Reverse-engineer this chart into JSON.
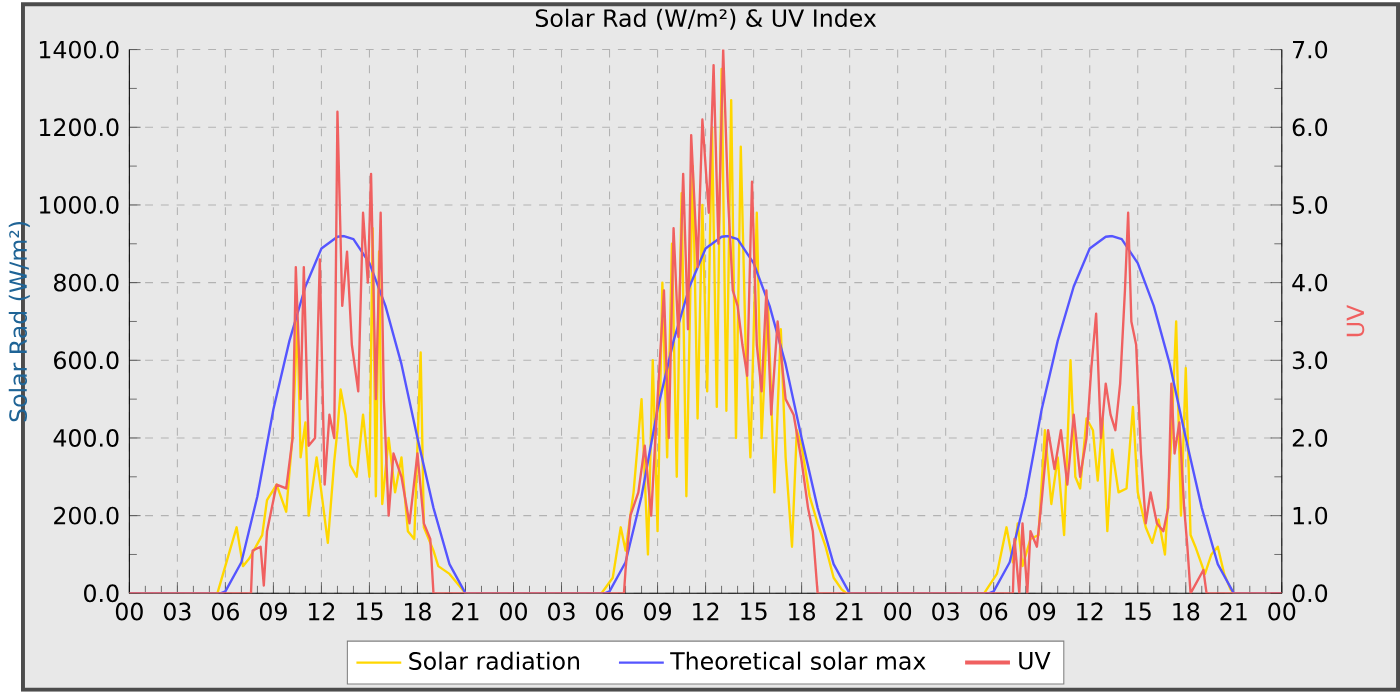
{
  "chart_data": {
    "type": "line",
    "title": "Solar Rad (W/m²) &  UV Index",
    "ylabel": "Solar Rad (W/m²)",
    "y2label": "UV",
    "xlim": [
      0,
      72
    ],
    "xticks": [
      {
        "value": 0,
        "label": "00"
      },
      {
        "value": 3,
        "label": "03"
      },
      {
        "value": 6,
        "label": "06"
      },
      {
        "value": 9,
        "label": "09"
      },
      {
        "value": 12,
        "label": "12"
      },
      {
        "value": 15,
        "label": "15"
      },
      {
        "value": 18,
        "label": "18"
      },
      {
        "value": 21,
        "label": "21"
      },
      {
        "value": 24,
        "label": "00"
      },
      {
        "value": 27,
        "label": "03"
      },
      {
        "value": 30,
        "label": "06"
      },
      {
        "value": 33,
        "label": "09"
      },
      {
        "value": 36,
        "label": "12"
      },
      {
        "value": 39,
        "label": "15"
      },
      {
        "value": 42,
        "label": "18"
      },
      {
        "value": 45,
        "label": "21"
      },
      {
        "value": 48,
        "label": "00"
      },
      {
        "value": 51,
        "label": "03"
      },
      {
        "value": 54,
        "label": "06"
      },
      {
        "value": 57,
        "label": "09"
      },
      {
        "value": 60,
        "label": "12"
      },
      {
        "value": 63,
        "label": "15"
      },
      {
        "value": 66,
        "label": "18"
      },
      {
        "value": 69,
        "label": "21"
      },
      {
        "value": 72,
        "label": "00"
      }
    ],
    "ylim": [
      0,
      1400
    ],
    "yticks": [
      {
        "value": 0,
        "label": "0.0"
      },
      {
        "value": 200,
        "label": "200.0"
      },
      {
        "value": 400,
        "label": "400.0"
      },
      {
        "value": 600,
        "label": "600.0"
      },
      {
        "value": 800,
        "label": "800.0"
      },
      {
        "value": 1000,
        "label": "1000.0"
      },
      {
        "value": 1200,
        "label": "1200.0"
      },
      {
        "value": 1400,
        "label": "1400.0"
      }
    ],
    "y2lim": [
      0,
      7
    ],
    "y2ticks": [
      {
        "value": 0,
        "label": "0.0"
      },
      {
        "value": 1,
        "label": "1.0"
      },
      {
        "value": 2,
        "label": "2.0"
      },
      {
        "value": 3,
        "label": "3.0"
      },
      {
        "value": 4,
        "label": "4.0"
      },
      {
        "value": 5,
        "label": "5.0"
      },
      {
        "value": 6,
        "label": "6.0"
      },
      {
        "value": 7,
        "label": "7.0"
      }
    ],
    "grid": true,
    "legend": "bottom",
    "series": [
      {
        "name": "Solar radiation",
        "color": "#ffd700",
        "x": [
          0,
          5.5,
          6.7,
          7.1,
          7.5,
          8.3,
          8.6,
          9.2,
          9.8,
          10.2,
          10.5,
          10.7,
          11,
          11.2,
          11.7,
          12,
          12.4,
          12.8,
          13,
          13.2,
          13.5,
          13.8,
          14.2,
          14.6,
          15,
          15.2,
          15.4,
          15.6,
          15.8,
          16.2,
          16.6,
          17,
          17.4,
          17.8,
          18.2,
          18.4,
          19,
          19.3,
          20,
          20.6,
          21,
          29.5,
          30.2,
          30.7,
          31,
          31.5,
          32,
          32.4,
          32.7,
          33,
          33.3,
          33.6,
          33.9,
          34.2,
          34.5,
          34.8,
          35.2,
          35.5,
          35.8,
          36.1,
          36.4,
          36.7,
          37,
          37.3,
          37.6,
          37.9,
          38.2,
          38.5,
          38.8,
          39.2,
          39.5,
          39.9,
          40.3,
          40.7,
          41,
          41.4,
          41.7,
          42,
          42.5,
          43,
          43.5,
          44,
          44.5,
          44.8,
          53.4,
          54.2,
          54.8,
          55.2,
          55.5,
          55.8,
          56.3,
          56.8,
          57.2,
          57.6,
          58,
          58.4,
          58.8,
          59.1,
          59.4,
          59.8,
          60.2,
          60.5,
          60.8,
          61.1,
          61.4,
          61.8,
          62.3,
          62.7,
          63,
          63.5,
          63.9,
          64.3,
          64.7,
          65.1,
          65.4,
          65.7,
          66,
          66.3,
          66.6,
          67.2,
          67.6,
          68,
          68.4,
          68.8,
          69,
          72
        ],
        "values": [
          0,
          0,
          170,
          70,
          90,
          150,
          240,
          280,
          210,
          410,
          700,
          350,
          440,
          200,
          350,
          260,
          130,
          340,
          420,
          525,
          460,
          330,
          300,
          460,
          300,
          940,
          250,
          880,
          230,
          400,
          260,
          350,
          160,
          140,
          620,
          170,
          110,
          70,
          50,
          20,
          0,
          0,
          40,
          170,
          110,
          260,
          500,
          100,
          600,
          160,
          800,
          350,
          900,
          300,
          1030,
          250,
          1100,
          450,
          1000,
          520,
          1200,
          480,
          1350,
          470,
          1270,
          400,
          1150,
          640,
          350,
          980,
          400,
          750,
          260,
          680,
          350,
          120,
          420,
          380,
          250,
          180,
          120,
          40,
          10,
          0,
          0,
          50,
          170,
          80,
          180,
          70,
          140,
          150,
          420,
          230,
          350,
          150,
          600,
          300,
          270,
          450,
          420,
          290,
          450,
          160,
          370,
          260,
          270,
          480,
          260,
          170,
          130,
          190,
          100,
          400,
          700,
          200,
          580,
          150,
          120,
          50,
          100,
          120,
          50,
          10,
          0,
          0
        ]
      },
      {
        "name": "Theoretical solar max",
        "color": "#5555ff",
        "x": [
          0,
          5.7,
          6,
          7,
          8,
          9,
          10,
          11,
          12,
          13,
          13.4,
          14,
          15,
          16,
          17,
          18,
          19,
          20,
          21,
          29.7,
          30,
          31,
          32,
          33,
          34,
          35,
          36,
          37,
          37.4,
          38,
          39,
          40,
          41,
          42,
          43,
          44,
          45,
          53.7,
          54,
          55,
          56,
          57,
          58,
          59,
          60,
          61,
          61.4,
          62,
          63,
          64,
          65,
          66,
          67,
          68,
          69,
          72
        ],
        "values": [
          0,
          0,
          5,
          80,
          250,
          474,
          650,
          790,
          888,
          918,
          920,
          912,
          850,
          740,
          590,
          400,
          220,
          75,
          0,
          0,
          5,
          80,
          250,
          474,
          650,
          790,
          888,
          918,
          920,
          912,
          850,
          740,
          590,
          400,
          220,
          75,
          0,
          0,
          5,
          80,
          250,
          474,
          650,
          790,
          888,
          918,
          920,
          912,
          850,
          740,
          590,
          400,
          220,
          75,
          0,
          0
        ]
      },
      {
        "name": "UV",
        "color": "#f06060",
        "axis": "y2",
        "x": [
          0,
          7.6,
          7.7,
          8.2,
          8.4,
          8.6,
          9.2,
          9.8,
          10.2,
          10.4,
          10.7,
          10.9,
          11.2,
          11.6,
          11.9,
          12.2,
          12.5,
          12.8,
          13,
          13.3,
          13.6,
          13.9,
          14.3,
          14.6,
          14.9,
          15.1,
          15.4,
          15.7,
          15.9,
          16.2,
          16.5,
          17,
          17.5,
          18,
          18.4,
          18.8,
          19,
          30.9,
          31,
          31.3,
          31.8,
          32.2,
          32.6,
          33,
          33.4,
          33.7,
          34,
          34.3,
          34.6,
          34.9,
          35.1,
          35.5,
          35.8,
          36.2,
          36.5,
          36.8,
          37.1,
          37.4,
          37.7,
          38,
          38.3,
          38.6,
          38.9,
          39.2,
          39.5,
          39.8,
          40.1,
          40.5,
          41,
          41.5,
          42,
          42.4,
          42.7,
          43,
          55.2,
          55.3,
          55.6,
          55.8,
          56.1,
          56.3,
          56.7,
          57,
          57.4,
          57.8,
          58.2,
          58.6,
          59,
          59.4,
          59.8,
          60.1,
          60.4,
          60.7,
          61,
          61.3,
          61.6,
          61.9,
          62.2,
          62.4,
          62.6,
          62.9,
          63.2,
          63.5,
          63.8,
          64.2,
          64.6,
          64.9,
          65.1,
          65.3,
          65.6,
          65.9,
          66.1,
          66.3,
          67.1,
          67.3,
          72
        ],
        "values": [
          0,
          0,
          0.55,
          0.6,
          0.1,
          0.8,
          1.4,
          1.35,
          2.0,
          4.2,
          2.5,
          4.2,
          1.9,
          2.0,
          4.3,
          1.4,
          2.3,
          2.0,
          6.2,
          3.7,
          4.4,
          3.2,
          2.6,
          4.9,
          4.0,
          5.4,
          2.5,
          4.9,
          2.5,
          1.0,
          1.8,
          1.5,
          0.9,
          1.8,
          0.9,
          0.7,
          0,
          0,
          0.3,
          1.0,
          1.3,
          1.9,
          1.0,
          2.5,
          3.9,
          2.0,
          4.7,
          3.3,
          5.4,
          3.4,
          5.9,
          4.2,
          6.1,
          4.9,
          6.8,
          4.5,
          7.0,
          5.1,
          3.9,
          3.7,
          3.2,
          2.8,
          5.3,
          3.2,
          2.6,
          3.9,
          2.3,
          3.5,
          2.5,
          2.3,
          1.7,
          1.1,
          0.8,
          0,
          0,
          0.7,
          0,
          0.9,
          0,
          0.8,
          0.6,
          1.2,
          2.1,
          1.6,
          2.1,
          1.4,
          2.3,
          1.5,
          2.0,
          2.9,
          3.6,
          2.0,
          2.7,
          2.3,
          2.1,
          2.7,
          3.9,
          4.9,
          3.5,
          3.2,
          1.8,
          0.9,
          1.3,
          0.9,
          0.8,
          1.1,
          2.7,
          1.8,
          2.2,
          1.1,
          0.6,
          0,
          0.3,
          0,
          0
        ]
      }
    ]
  }
}
